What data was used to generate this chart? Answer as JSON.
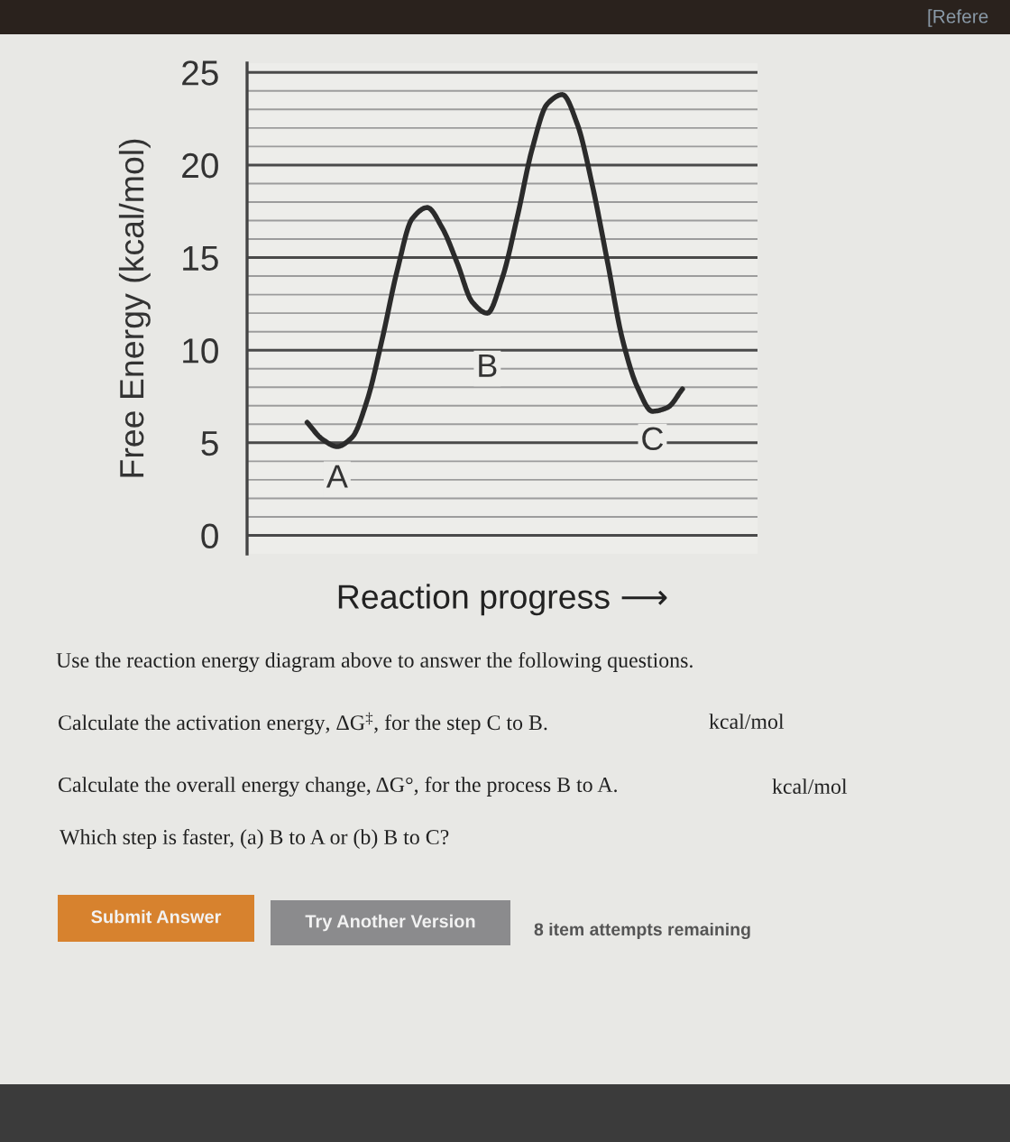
{
  "chart_data": {
    "type": "line",
    "xlabel": "Reaction progress ⟶",
    "ylabel": "Free Energy (kcal/mol)",
    "categories": [
      null,
      null,
      null,
      null,
      null,
      null,
      null,
      null,
      null,
      null,
      null,
      null,
      null,
      null,
      null,
      null,
      null,
      null,
      null,
      null,
      null,
      null,
      null,
      null,
      null,
      null
    ],
    "series": [
      {
        "color": "#2b2b2b",
        "values": [
          6.1,
          5.2,
          4.8,
          5.3,
          7.3,
          10.6,
          14.3,
          17.1,
          17.7,
          16.6,
          14.7,
          12.6,
          12.0,
          13.9,
          17.2,
          20.9,
          23.3,
          23.8,
          22.2,
          18.9,
          14.8,
          10.6,
          8.0,
          6.7,
          6.9,
          7.9
        ]
      }
    ],
    "ylim": [
      -1,
      25.5
    ],
    "yticks": [
      0,
      {
        "value": 1,
        "label": null
      },
      {
        "value": 2,
        "label": null
      },
      {
        "value": 3,
        "label": null
      },
      {
        "value": 4,
        "label": null
      },
      5,
      {
        "value": 6,
        "label": null
      },
      {
        "value": 7,
        "label": null
      },
      {
        "value": 8,
        "label": null
      },
      {
        "value": 9,
        "label": null
      },
      10,
      {
        "value": 11,
        "label": null
      },
      {
        "value": 12,
        "label": null
      },
      {
        "value": 13,
        "label": null
      },
      {
        "value": 14,
        "label": null
      },
      15,
      {
        "value": 16,
        "label": null
      },
      {
        "value": 17,
        "label": null
      },
      {
        "value": 18,
        "label": null
      },
      {
        "value": 19,
        "label": null
      },
      20,
      {
        "value": 21,
        "label": null
      },
      {
        "value": 22,
        "label": null
      },
      {
        "value": 23,
        "label": null
      },
      {
        "value": 24,
        "label": null
      },
      25
    ],
    "grid": "y",
    "tick_labels": "y",
    "annotations": [
      "A",
      "B",
      "C",
      "Use the reaction energy diagram above to answer the following questions.",
      "Calculate the activation energy, ΔG$^{‡}$, for the step C to B.",
      "kcal/mol",
      "Calculate the overall energy change, ΔG°, for the process B to A.",
      "kcal/mol",
      "Which step is faster, (a) B to A or (b) B to C?",
      "Submit Answer",
      "Try Another Version",
      "8 item attempts remaining",
      "[Refere"
    ]
  }
}
